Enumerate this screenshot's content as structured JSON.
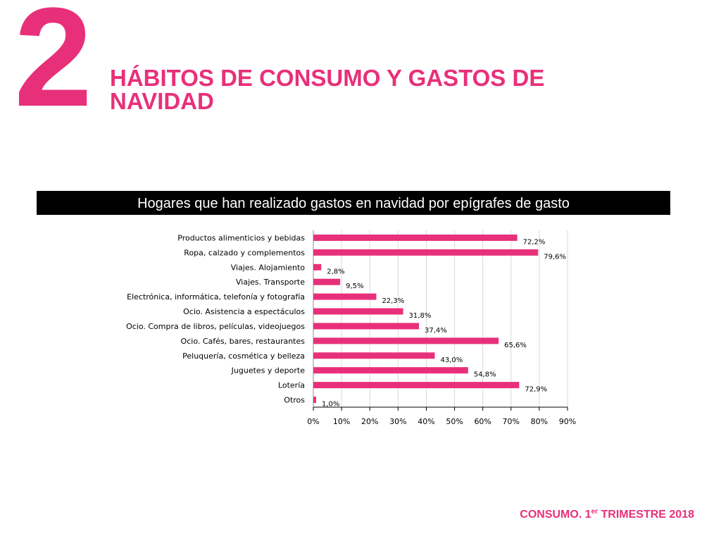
{
  "header": {
    "section_number": "2",
    "title": "HÁBITOS DE CONSUMO Y GASTOS DE NAVIDAD"
  },
  "footer": {
    "prefix": "CONSUMO. 1",
    "superscript": "er",
    "suffix": " TRIMESTRE 2018"
  },
  "colors": {
    "accent": "#e8307a",
    "bar": "#e8307a",
    "title_bar_bg": "#000000"
  },
  "chart_data": {
    "type": "bar",
    "orientation": "horizontal",
    "title": "Hogares que han realizado gastos en navidad por epígrafes de gasto",
    "categories": [
      "Productos alimenticios y bebidas",
      "Ropa, calzado y complementos",
      "Viajes. Alojamiento",
      "Viajes. Transporte",
      "Electrónica, informática, telefonía y fotografía",
      "Ocio. Asistencia a espectáculos",
      "Ocio. Compra de libros, películas, videojuegos",
      "Ocio. Cafés, bares, restaurantes",
      "Peluquería, cosmética y belleza",
      "Juguetes y deporte",
      "Lotería",
      "Otros"
    ],
    "values": [
      72.2,
      79.6,
      2.8,
      9.5,
      22.3,
      31.8,
      37.4,
      65.6,
      43.0,
      54.8,
      72.9,
      1.0
    ],
    "value_labels": [
      "72,2%",
      "79,6%",
      "2,8%",
      "9,5%",
      "22,3%",
      "31,8%",
      "37,4%",
      "65,6%",
      "43,0%",
      "54,8%",
      "72,9%",
      "1,0%"
    ],
    "x_ticks": [
      "0%",
      "10%",
      "20%",
      "30%",
      "40%",
      "50%",
      "60%",
      "70%",
      "80%",
      "90%"
    ],
    "xlim": [
      0,
      90
    ],
    "grid": true,
    "xlabel": "",
    "ylabel": ""
  }
}
